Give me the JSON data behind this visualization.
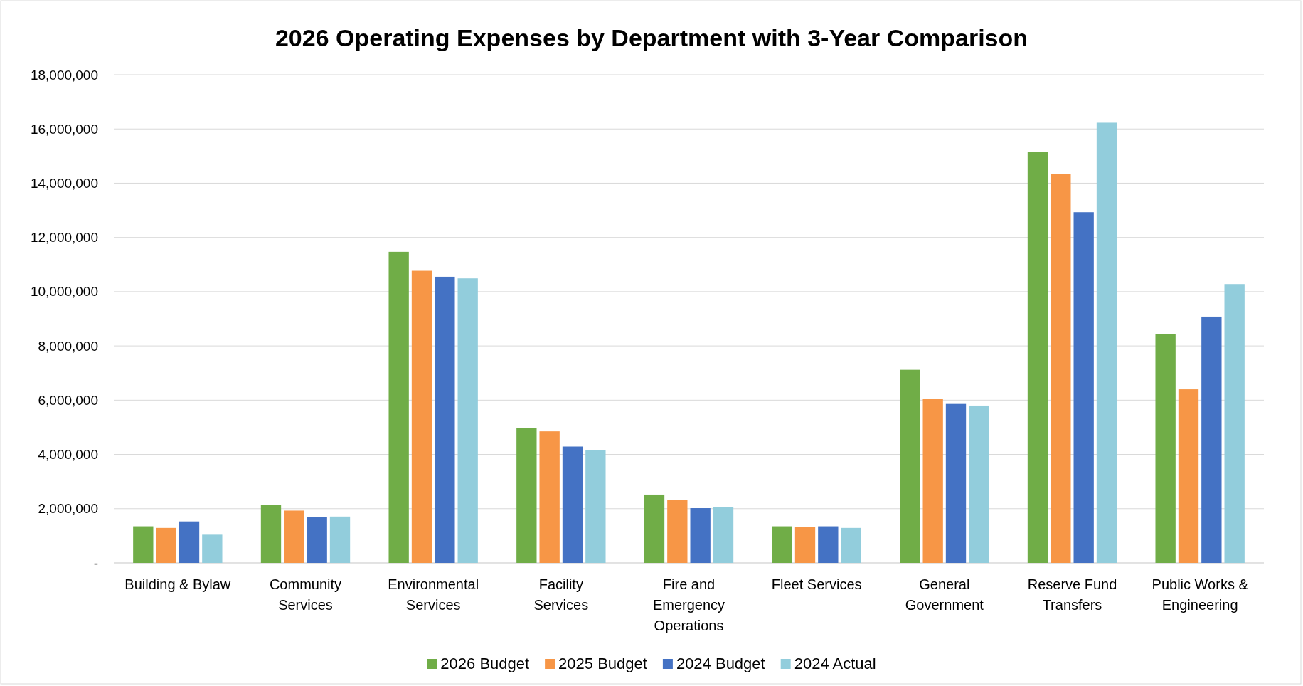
{
  "chart_data": {
    "type": "bar",
    "title": "2026 Operating Expenses by Department with 3-Year Comparison",
    "categories": [
      "Building & Bylaw",
      "Community Services",
      "Environmental Services",
      "Facility Services",
      "Fire and Emergency Operations",
      "Fleet Services",
      "General Government",
      "Reserve Fund Transfers",
      "Public Works & Engineering"
    ],
    "series": [
      {
        "name": "2026 Budget",
        "color": "#70ad47",
        "values": [
          1350000,
          2150000,
          11470000,
          4970000,
          2520000,
          1350000,
          7120000,
          15150000,
          8440000
        ]
      },
      {
        "name": "2025 Budget",
        "color": "#f79646",
        "values": [
          1290000,
          1930000,
          10770000,
          4850000,
          2330000,
          1320000,
          6050000,
          14330000,
          6400000
        ]
      },
      {
        "name": "2024 Budget",
        "color": "#4472c4",
        "values": [
          1530000,
          1690000,
          10550000,
          4290000,
          2020000,
          1350000,
          5860000,
          12930000,
          9080000
        ]
      },
      {
        "name": "2024 Actual",
        "color": "#92cddc",
        "values": [
          1040000,
          1710000,
          10490000,
          4170000,
          2060000,
          1290000,
          5800000,
          16230000,
          10280000
        ]
      }
    ],
    "ylim": [
      0,
      18000000
    ],
    "yticks": [
      {
        "value": 0,
        "label": "-"
      },
      {
        "value": 2000000,
        "label": "2,000,000"
      },
      {
        "value": 4000000,
        "label": "4,000,000"
      },
      {
        "value": 6000000,
        "label": "6,000,000"
      },
      {
        "value": 8000000,
        "label": "8,000,000"
      },
      {
        "value": 10000000,
        "label": "10,000,000"
      },
      {
        "value": 12000000,
        "label": "12,000,000"
      },
      {
        "value": 14000000,
        "label": "14,000,000"
      },
      {
        "value": 16000000,
        "label": "16,000,000"
      },
      {
        "value": 18000000,
        "label": "18,000,000"
      }
    ],
    "grid": "y",
    "legend": "bottom"
  }
}
